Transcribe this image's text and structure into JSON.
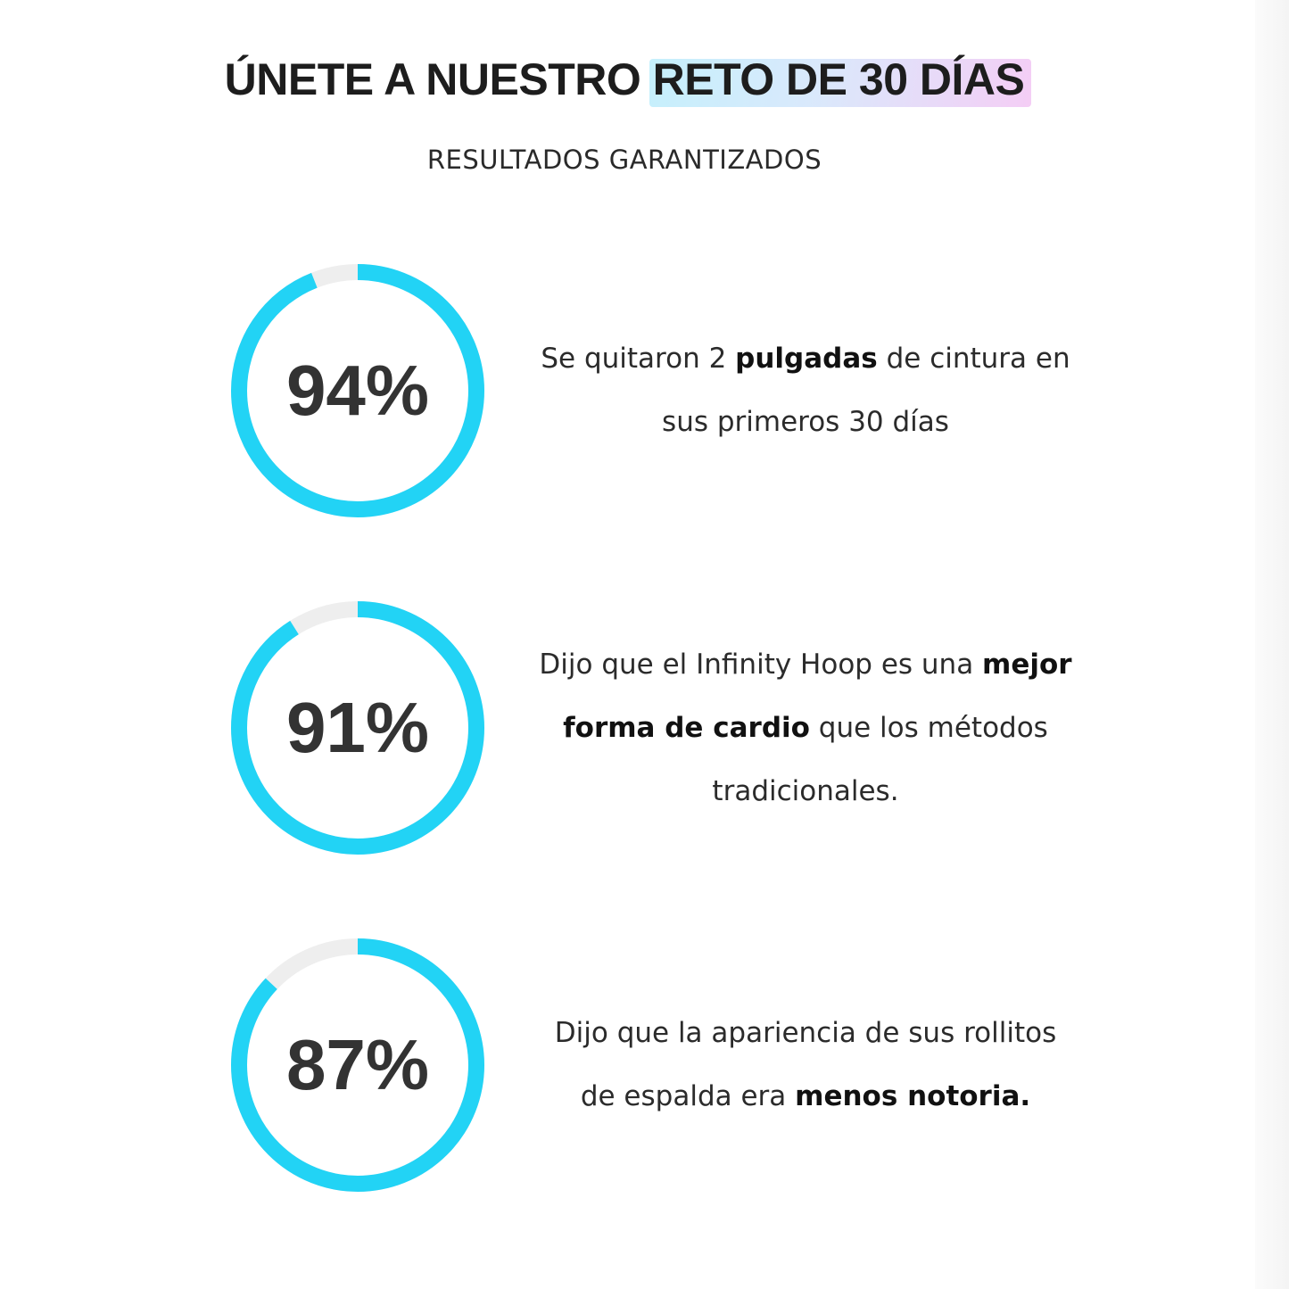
{
  "header": {
    "title_prefix": "ÚNETE A NUESTRO",
    "title_highlight": "RETO DE 30 DÍAS",
    "subtitle": "RESULTADOS GARANTIZADOS"
  },
  "colors": {
    "ring_progress": "#22d3f5",
    "ring_track": "#eeeeee",
    "text": "#2b2b2b"
  },
  "stats": [
    {
      "percent_label": "94%",
      "percent": 94,
      "text_parts": [
        {
          "text": "Se quitaron 2 ",
          "bold": false
        },
        {
          "text": "pulgadas",
          "bold": true
        },
        {
          "text": " de cintura en sus primeros 30 días",
          "bold": false
        }
      ]
    },
    {
      "percent_label": "91%",
      "percent": 91,
      "text_parts": [
        {
          "text": "Dijo que el Infinity Hoop es una ",
          "bold": false
        },
        {
          "text": "mejor forma de cardio",
          "bold": true
        },
        {
          "text": " que los métodos tradicionales.",
          "bold": false
        }
      ]
    },
    {
      "percent_label": "87%",
      "percent": 87,
      "text_parts": [
        {
          "text": "Dijo que la apariencia de sus rollitos de espalda era ",
          "bold": false
        },
        {
          "text": "menos notoria.",
          "bold": true
        }
      ]
    }
  ]
}
